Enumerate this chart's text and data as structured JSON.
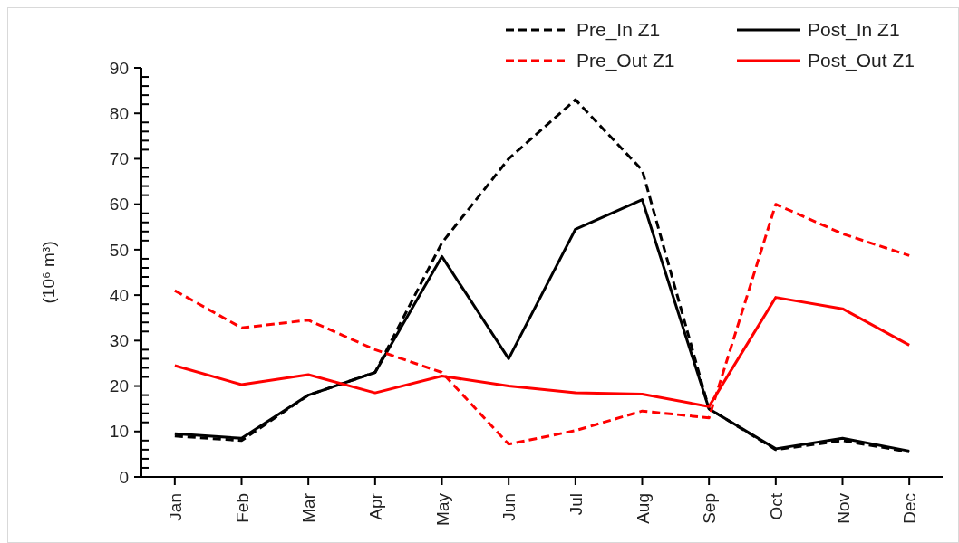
{
  "chart_data": {
    "type": "line",
    "ylabel": "(10⁶ m³)",
    "categories": [
      "Jan",
      "Feb",
      "Mar",
      "Apr",
      "May",
      "Jun",
      "Jul",
      "Aug",
      "Sep",
      "Oct",
      "Nov",
      "Dec"
    ],
    "ylim": [
      0,
      90
    ],
    "yticks": [
      0,
      {
        "value": 2,
        "label": null
      },
      {
        "value": 4,
        "label": null
      },
      {
        "value": 6,
        "label": null
      },
      {
        "value": 8,
        "label": null
      },
      10,
      {
        "value": 12,
        "label": null
      },
      {
        "value": 14,
        "label": null
      },
      {
        "value": 16,
        "label": null
      },
      {
        "value": 18,
        "label": null
      },
      20,
      {
        "value": 22,
        "label": null
      },
      {
        "value": 24,
        "label": null
      },
      {
        "value": 26,
        "label": null
      },
      {
        "value": 28,
        "label": null
      },
      30,
      {
        "value": 32,
        "label": null
      },
      {
        "value": 34,
        "label": null
      },
      {
        "value": 36,
        "label": null
      },
      {
        "value": 38,
        "label": null
      },
      40,
      {
        "value": 42,
        "label": null
      },
      {
        "value": 44,
        "label": null
      },
      {
        "value": 46,
        "label": null
      },
      {
        "value": 48,
        "label": null
      },
      50,
      {
        "value": 52,
        "label": null
      },
      {
        "value": 54,
        "label": null
      },
      {
        "value": 56,
        "label": null
      },
      {
        "value": 58,
        "label": null
      },
      60,
      {
        "value": 62,
        "label": null
      },
      {
        "value": 64,
        "label": null
      },
      {
        "value": 66,
        "label": null
      },
      {
        "value": 68,
        "label": null
      },
      70,
      {
        "value": 72,
        "label": null
      },
      {
        "value": 74,
        "label": null
      },
      {
        "value": 76,
        "label": null
      },
      {
        "value": 78,
        "label": null
      },
      80,
      {
        "value": 82,
        "label": null
      },
      {
        "value": 84,
        "label": null
      },
      {
        "value": 86,
        "label": null
      },
      {
        "value": 88,
        "label": null
      },
      90
    ],
    "grid": false,
    "legend": "top right",
    "marker": "none",
    "series": [
      {
        "name": "Pre_In Z1",
        "color": "#000000",
        "line_style": "dashed",
        "values": [
          9,
          8,
          18,
          23,
          51.5,
          70,
          83,
          67.5,
          15,
          6,
          8,
          5.5
        ]
      },
      {
        "name": "Post_In Z1",
        "color": "#000000",
        "line_style": "solid",
        "values": [
          9.5,
          8.5,
          18,
          23,
          48.5,
          26,
          54.5,
          61,
          15,
          6.2,
          8.5,
          5.7
        ]
      },
      {
        "name": "Pre_Out Z1",
        "color": "#ff0000",
        "line_style": "dashed",
        "values": [
          41,
          32.8,
          34.5,
          28,
          23,
          7.2,
          10.2,
          14.5,
          13,
          60,
          53.5,
          48.7
        ]
      },
      {
        "name": "Post_Out Z1",
        "color": "#ff0000",
        "line_style": "solid",
        "values": [
          24.5,
          20.3,
          22.5,
          18.5,
          22.2,
          20,
          18.5,
          18.2,
          15.5,
          39.5,
          37,
          29
        ]
      }
    ]
  }
}
